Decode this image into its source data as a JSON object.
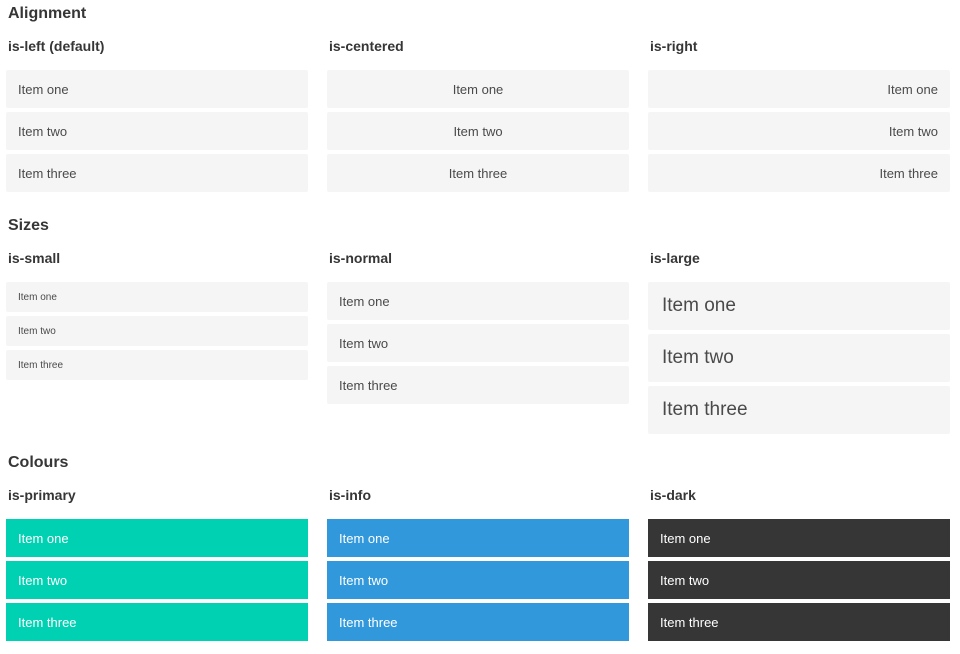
{
  "sections": [
    {
      "title": "Alignment",
      "columns": [
        {
          "heading": "is-left (default)",
          "modifier": "is-left",
          "items": [
            "Item one",
            "Item two",
            "Item three"
          ]
        },
        {
          "heading": "is-centered",
          "modifier": "is-centered",
          "items": [
            "Item one",
            "Item two",
            "Item three"
          ]
        },
        {
          "heading": "is-right",
          "modifier": "is-right",
          "items": [
            "Item one",
            "Item two",
            "Item three"
          ]
        }
      ]
    },
    {
      "title": "Sizes",
      "columns": [
        {
          "heading": "is-small",
          "modifier": "is-small",
          "items": [
            "Item one",
            "Item two",
            "Item three"
          ]
        },
        {
          "heading": "is-normal",
          "modifier": "is-normal",
          "items": [
            "Item one",
            "Item two",
            "Item three"
          ]
        },
        {
          "heading": "is-large",
          "modifier": "is-large",
          "items": [
            "Item one",
            "Item two",
            "Item three"
          ]
        }
      ]
    },
    {
      "title": "Colours",
      "columns": [
        {
          "heading": "is-primary",
          "modifier": "is-primary",
          "items": [
            "Item one",
            "Item two",
            "Item three"
          ]
        },
        {
          "heading": "is-info",
          "modifier": "is-info",
          "items": [
            "Item one",
            "Item two",
            "Item three"
          ]
        },
        {
          "heading": "is-dark",
          "modifier": "is-dark",
          "items": [
            "Item one",
            "Item two",
            "Item three"
          ]
        }
      ]
    }
  ],
  "colors": {
    "primary": "#00d1b2",
    "info": "#3298dc",
    "dark": "#363636",
    "item_background": "#f5f5f5",
    "item_text": "#4a4a4a",
    "heading_text": "#363636",
    "text_on_color": "#ffffff"
  }
}
